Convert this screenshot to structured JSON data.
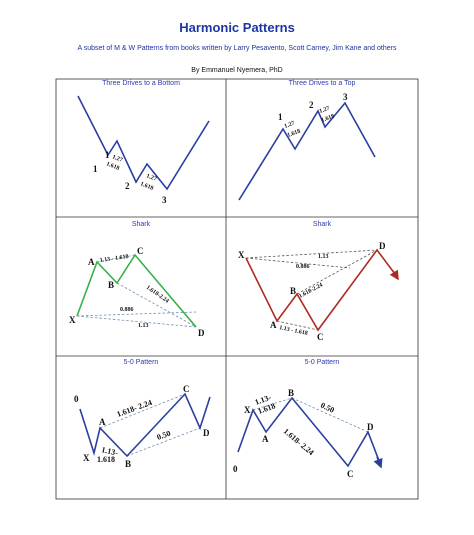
{
  "header": {
    "title": "Harmonic Patterns",
    "subtitle": "A subset of M & W Patterns from books written  by Larry Pesavento, Scott Carney, Jim Kane and others",
    "author": "By Emmanuel Nyemera, PhD"
  },
  "panels": {
    "p1": {
      "title": "Three Drives to a Bottom",
      "labels": {
        "d1": "1",
        "d2": "2",
        "d3": "3"
      },
      "ratios": {
        "r1a": "1.27",
        "r1b": "1.618",
        "r2a": "1.27",
        "r2b": "1.618"
      }
    },
    "p2": {
      "title": "Three Drives to a Top",
      "labels": {
        "d1": "1",
        "d2": "2",
        "d3": "3"
      },
      "ratios": {
        "r1a": "1.27",
        "r1b": "1.618",
        "r2a": "1.27",
        "r2b": "1.618"
      }
    },
    "p3": {
      "title": "Shark",
      "labels": {
        "x": "X",
        "a": "A",
        "b": "B",
        "c": "C",
        "d": "D"
      },
      "ratios": {
        "ac": "1.13 - 1.618",
        "bd": "1.618-2.24",
        "xd": "0.886",
        "xc": "1.13"
      }
    },
    "p4": {
      "title": "Shark",
      "labels": {
        "x": "X",
        "a": "A",
        "b": "B",
        "c": "C",
        "d": "D"
      },
      "ratios": {
        "xc": "1.13",
        "xd": "0.886",
        "bd": "1.618-2.24",
        "ac": "1.13 - 1.618"
      }
    },
    "p5": {
      "title": "5-0 Pattern",
      "labels": {
        "o": "0",
        "x": "X",
        "a": "A",
        "b": "B",
        "c": "C",
        "d": "D"
      },
      "ratios": {
        "ac": "1.618- 2.24",
        "bd": "0.50",
        "xb1": "1.13-",
        "xb2": "1.618"
      }
    },
    "p6": {
      "title": "5-0 Pattern",
      "labels": {
        "o": "0",
        "x": "X",
        "a": "A",
        "b": "B",
        "c": "C",
        "d": "D"
      },
      "ratios": {
        "xb1": "1.13-",
        "xb2": "1.618",
        "bd": "0.50",
        "ac": "1.618- 2.24"
      }
    }
  },
  "colors": {
    "title": "#1c36a6",
    "blue_line": "#2a3fa0",
    "green_line": "#36b24a",
    "red_line": "#b02a22"
  }
}
